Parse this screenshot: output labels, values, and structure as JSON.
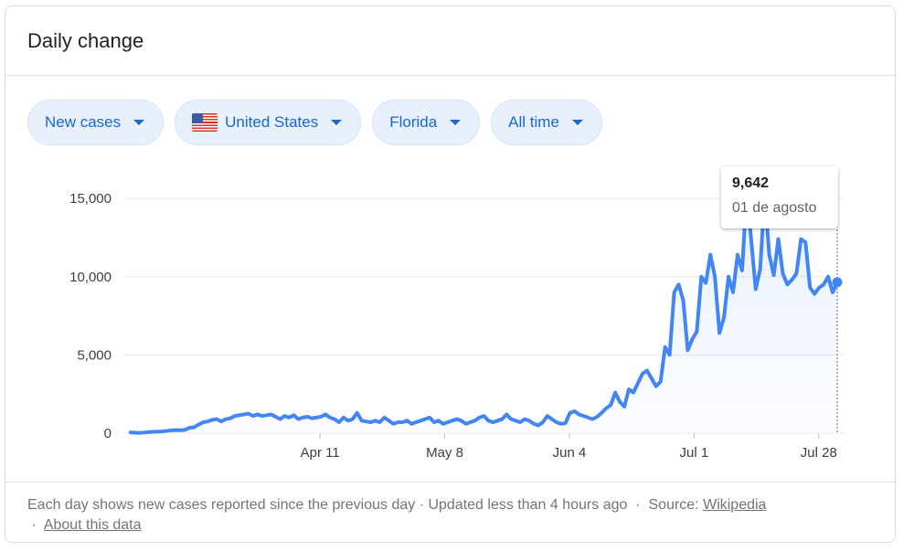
{
  "header": {
    "title": "Daily change"
  },
  "filters": [
    {
      "label": "New cases"
    },
    {
      "label": "United States",
      "icon": "us-flag-icon"
    },
    {
      "label": "Florida"
    },
    {
      "label": "All time"
    }
  ],
  "tooltip": {
    "value": "9,642",
    "date": "01 de agosto"
  },
  "footer": {
    "note": "Each day shows new cases reported since the previous day · Updated less than 4 hours ago",
    "source_label": "Source:",
    "source_link": "Wikipedia",
    "about_link": "About this data"
  },
  "colors": {
    "line": "#4285f4",
    "chip_bg": "#e8f0fe",
    "chip_text": "#1967d2"
  },
  "chart_data": {
    "type": "line",
    "title": "",
    "xlabel": "",
    "ylabel": "",
    "ylim": [
      0,
      16000
    ],
    "yticks": [
      0,
      5000,
      10000,
      15000
    ],
    "ytick_labels": [
      "0",
      "5,000",
      "10,000",
      "15,000"
    ],
    "xtick_labels": [
      "Apr 11",
      "May 8",
      "Jun 4",
      "Jul 1",
      "Jul 28"
    ],
    "xtick_dates": [
      "2020-04-11",
      "2020-05-08",
      "2020-06-04",
      "2020-07-01",
      "2020-07-28"
    ],
    "x_start": "2020-03-01",
    "x_end": "2020-08-01",
    "grid": true,
    "fill_area": true,
    "series": [
      {
        "name": "",
        "values": [
          50,
          30,
          20,
          40,
          70,
          90,
          100,
          110,
          150,
          180,
          200,
          190,
          210,
          350,
          380,
          550,
          700,
          750,
          850,
          900,
          750,
          900,
          950,
          1100,
          1150,
          1200,
          1250,
          1100,
          1200,
          1100,
          1150,
          1200,
          1050,
          900,
          1100,
          1000,
          1150,
          900,
          1000,
          1050,
          950,
          1000,
          1050,
          1200,
          1000,
          900,
          700,
          1000,
          800,
          900,
          1300,
          800,
          750,
          700,
          800,
          700,
          1000,
          800,
          600,
          700,
          700,
          800,
          600,
          700,
          800,
          900,
          1000,
          700,
          800,
          600,
          700,
          800,
          900,
          800,
          600,
          700,
          800,
          1000,
          1100,
          800,
          700,
          800,
          900,
          1200,
          900,
          800,
          700,
          900,
          800,
          600,
          500,
          700,
          1100,
          900,
          700,
          600,
          650,
          1300,
          1400,
          1200,
          1100,
          1000,
          900,
          1050,
          1300,
          1600,
          1800,
          2600,
          2000,
          1700,
          2800,
          2600,
          3200,
          3800,
          4000,
          3500,
          3000,
          3300,
          5500,
          5000,
          9000,
          9500,
          8500,
          5300,
          6000,
          6500,
          10000,
          9600,
          11400,
          10000,
          6400,
          7400,
          10000,
          9000,
          11400,
          10400,
          15300,
          12400,
          9200,
          10500,
          15300,
          11400,
          10100,
          12400,
          10200,
          9500,
          9800,
          10200,
          12400,
          12200,
          9300,
          8900,
          9300,
          9500,
          10000,
          9000,
          9642
        ]
      }
    ]
  }
}
